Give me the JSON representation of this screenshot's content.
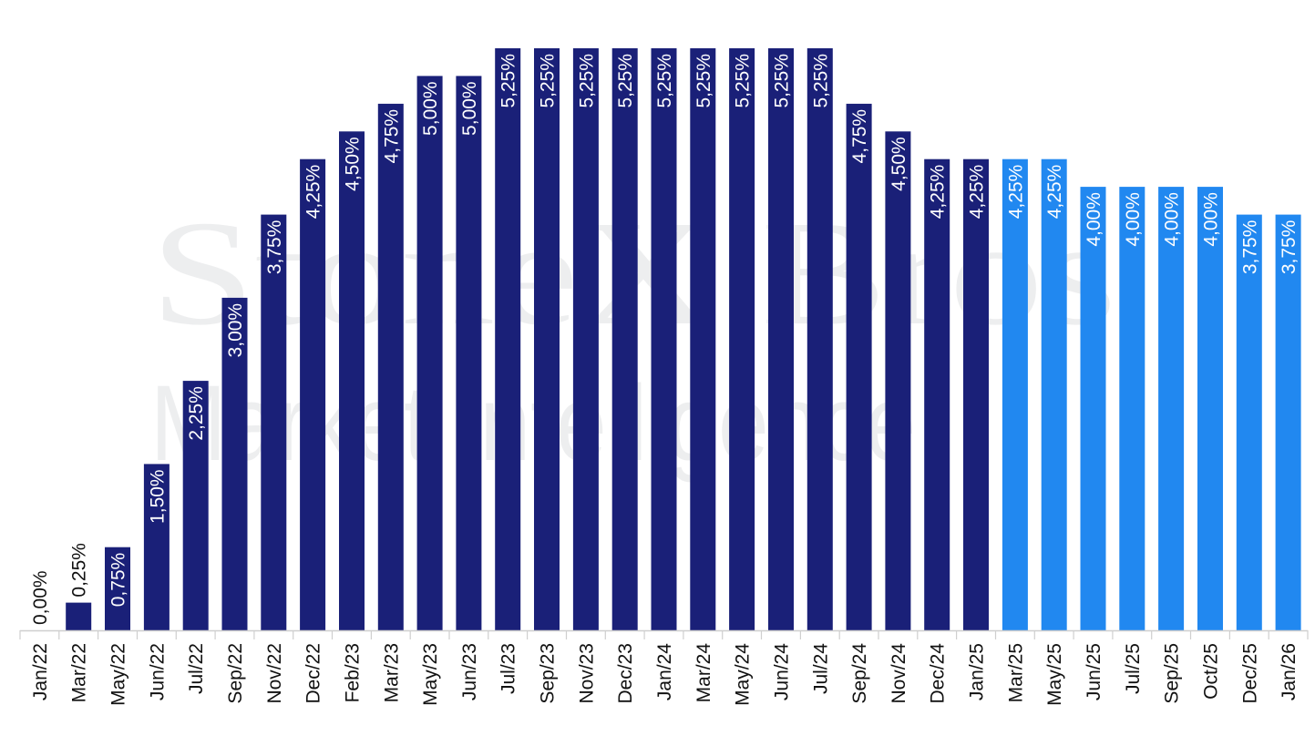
{
  "watermark": {
    "line1": "StoneX Bros",
    "line2": "Market Intelligence"
  },
  "chart_data": {
    "type": "bar",
    "categories": [
      "Jan/22",
      "Mar/22",
      "May/22",
      "Jun/22",
      "Jul/22",
      "Sep/22",
      "Nov/22",
      "Dec/22",
      "Feb/23",
      "Mar/23",
      "May/23",
      "Jun/23",
      "Jul/23",
      "Sep/23",
      "Nov/23",
      "Dec/23",
      "Jan/24",
      "Mar/24",
      "May/24",
      "Jun/24",
      "Jul/24",
      "Sep/24",
      "Nov/24",
      "Dec/24",
      "Jan/25",
      "Mar/25",
      "May/25",
      "Jun/25",
      "Jul/25",
      "Sep/25",
      "Oct/25",
      "Dec/25",
      "Jan/26"
    ],
    "values": [
      0.0,
      0.25,
      0.75,
      1.5,
      2.25,
      3.0,
      3.75,
      4.25,
      4.5,
      4.75,
      5.0,
      5.0,
      5.25,
      5.25,
      5.25,
      5.25,
      5.25,
      5.25,
      5.25,
      5.25,
      5.25,
      4.75,
      4.5,
      4.25,
      4.25,
      4.25,
      4.25,
      4.0,
      4.0,
      4.0,
      4.0,
      3.75,
      3.75
    ],
    "data_labels": [
      "0,00%",
      "0,25%",
      "0,75%",
      "1,50%",
      "2,25%",
      "3,00%",
      "3,75%",
      "4,25%",
      "4,50%",
      "4,75%",
      "5,00%",
      "5,00%",
      "5,25%",
      "5,25%",
      "5,25%",
      "5,25%",
      "5,25%",
      "5,25%",
      "5,25%",
      "5,25%",
      "5,25%",
      "4,75%",
      "4,50%",
      "4,25%",
      "4,25%",
      "4,25%",
      "4,25%",
      "4,00%",
      "4,00%",
      "4,00%",
      "4,00%",
      "3,75%",
      "3,75%"
    ],
    "projected_from_index": 25,
    "colors": {
      "actual": "#1a2078",
      "projected": "#2188f0"
    },
    "ylim": [
      0,
      5.25
    ],
    "grid": false,
    "title": "",
    "xlabel": "",
    "ylabel": ""
  }
}
